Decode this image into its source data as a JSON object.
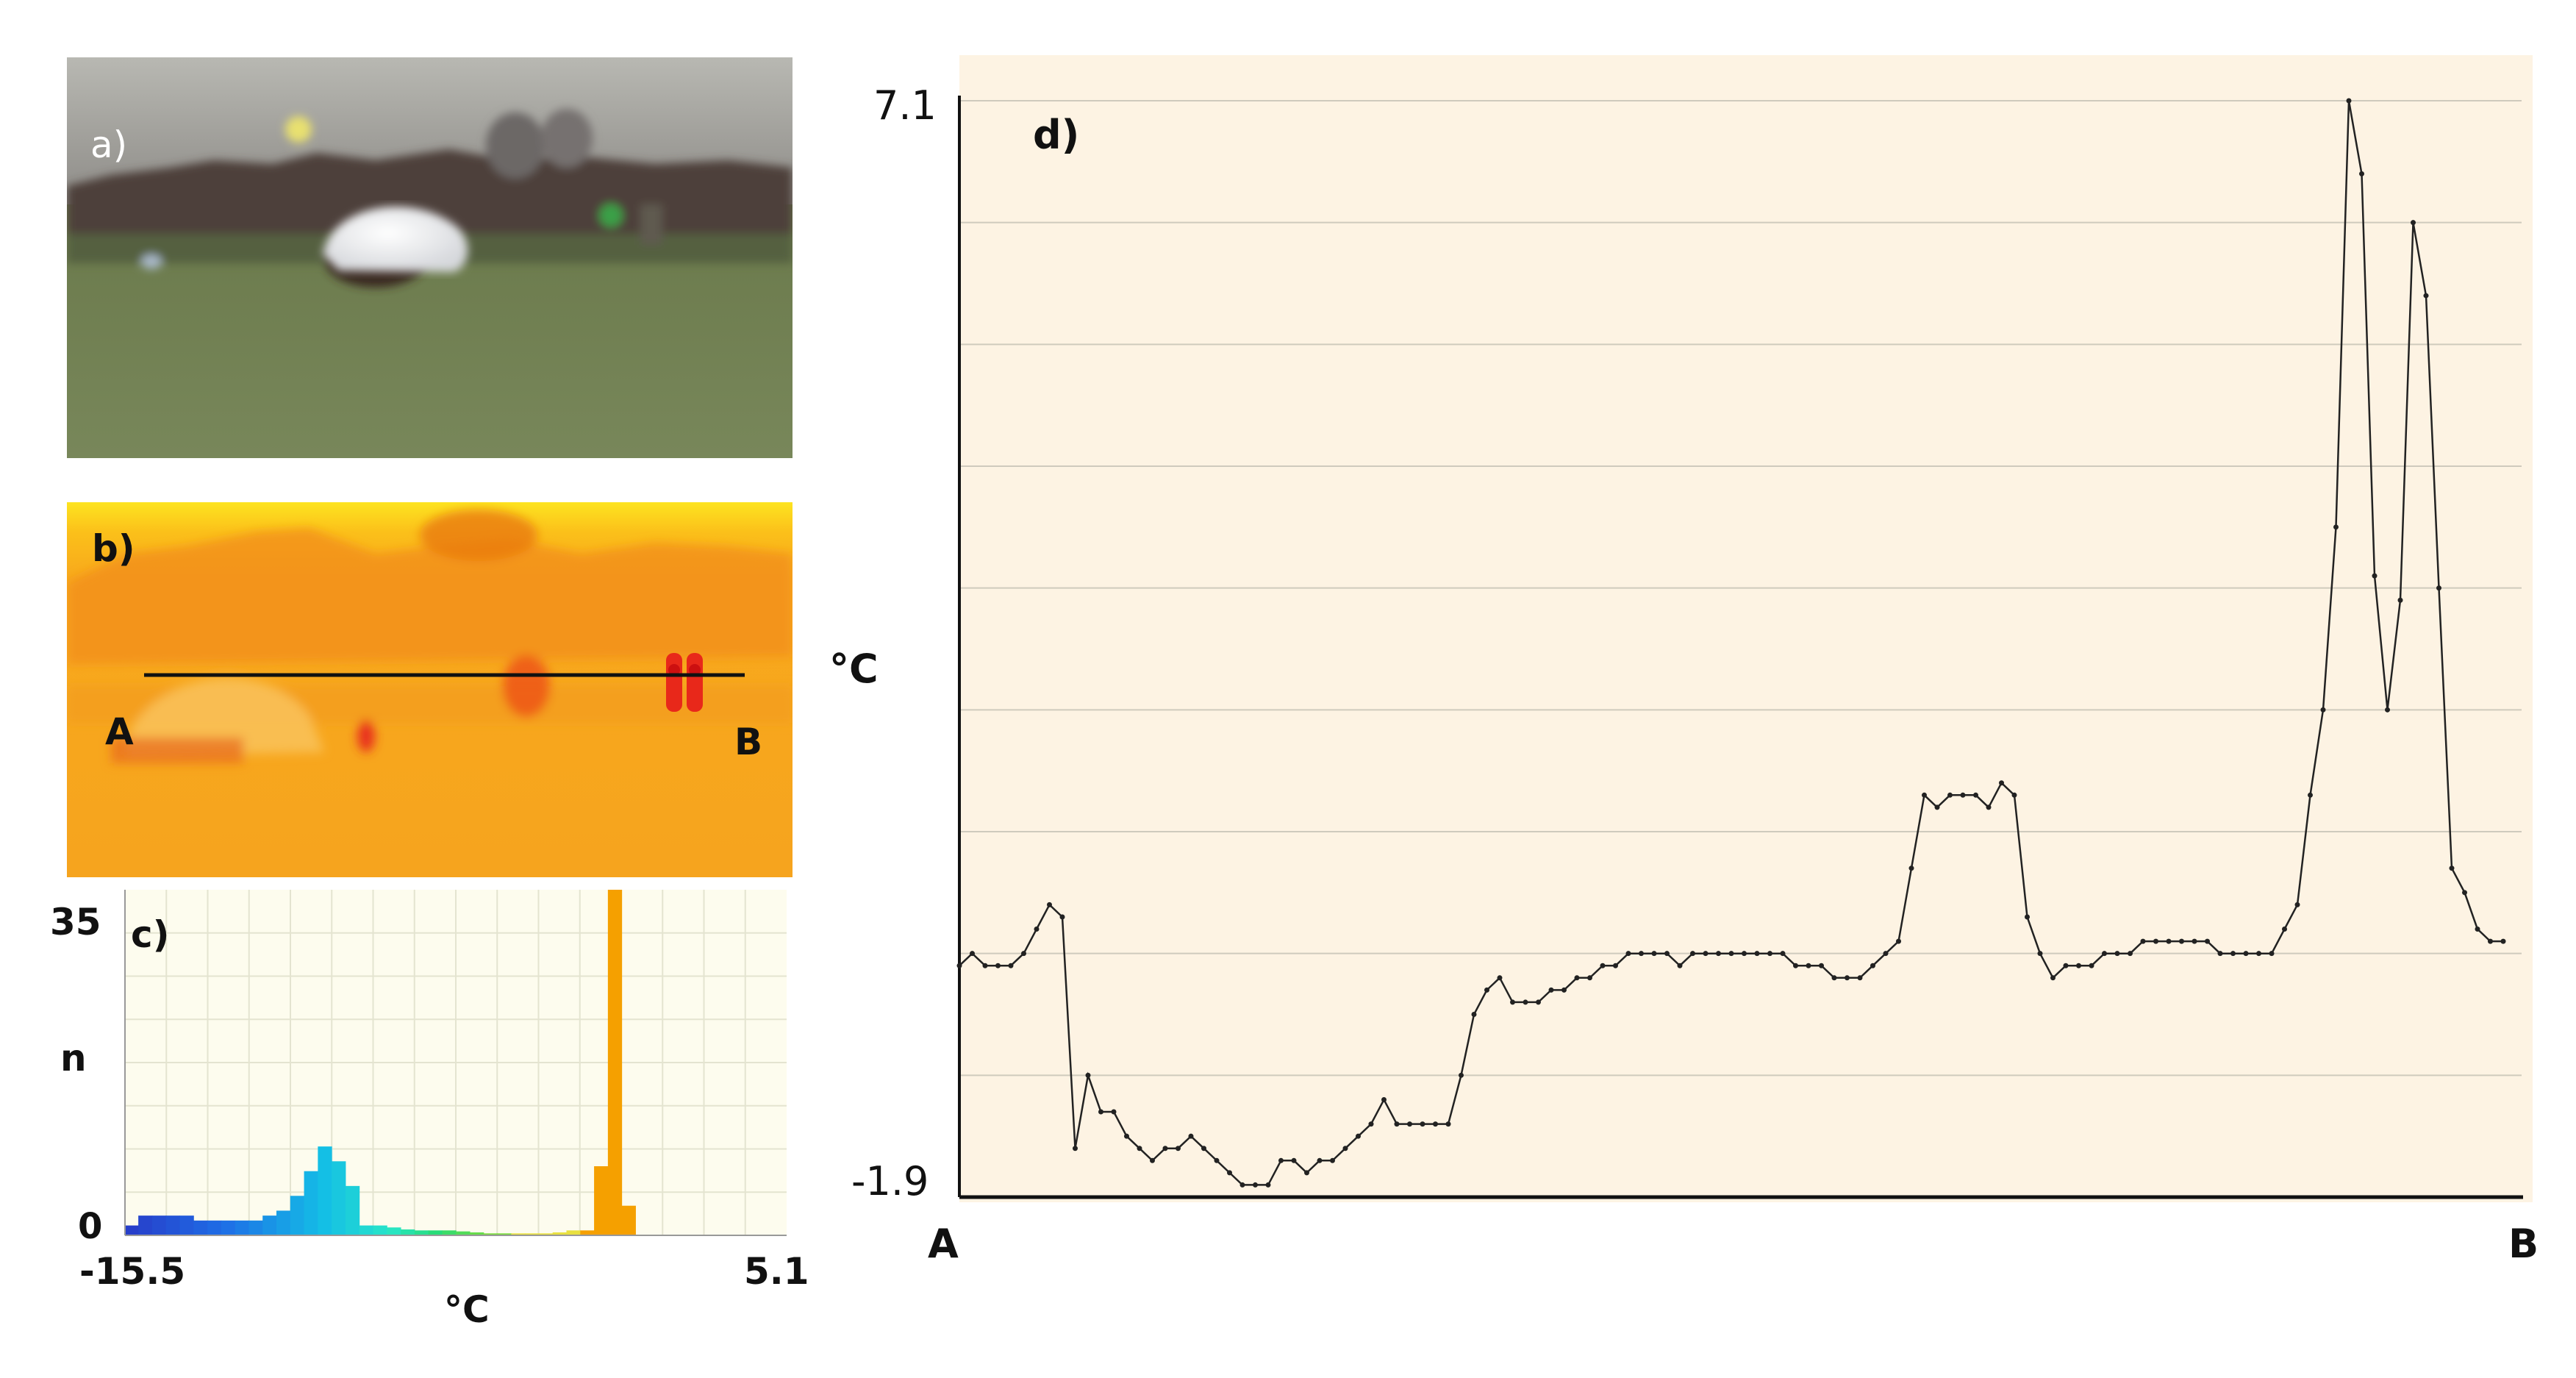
{
  "panels": {
    "a": {
      "label": "a)"
    },
    "b": {
      "label": "b)",
      "point_a": "A",
      "point_b": "B"
    },
    "c": {
      "label": "c)"
    },
    "d": {
      "label": "d)"
    }
  },
  "colors": {
    "profile_bg": "#fdf3e3",
    "histogram_bg": "#fdfcee",
    "thermal_base": "#f7a21c",
    "profile_line": "#222222",
    "histogram_peak": "#f5a000"
  },
  "chart_data": [
    {
      "type": "bar",
      "panel": "c",
      "xlabel": "°C",
      "ylabel": "n",
      "x_tick_labels": [
        "-15.5",
        "5.1"
      ],
      "y_tick_labels": [
        "0",
        "35"
      ],
      "xlim": [
        -15.5,
        5.1
      ],
      "ylim": [
        0,
        35
      ],
      "grid": true,
      "bin_width": 0.43,
      "x": [
        -15.3,
        -14.87,
        -14.44,
        -14.01,
        -13.58,
        -13.15,
        -12.72,
        -12.29,
        -11.86,
        -11.43,
        -11.0,
        -10.57,
        -10.14,
        -9.71,
        -9.28,
        -8.85,
        -8.42,
        -7.99,
        -7.56,
        -7.13,
        -6.7,
        -6.27,
        -5.84,
        -5.41,
        -4.98,
        -4.55,
        -4.12,
        -3.69,
        -3.26,
        -2.83,
        -2.4,
        -1.97,
        -1.54,
        -1.11,
        -0.68,
        -0.25,
        0.18,
        0.61,
        1.04
      ],
      "values": [
        1,
        2,
        2,
        2,
        2,
        1.5,
        1.5,
        1.5,
        1.5,
        1.5,
        2,
        2.5,
        4,
        6.5,
        9,
        7.5,
        5,
        1,
        1,
        0.8,
        0.6,
        0.5,
        0.5,
        0.5,
        0.4,
        0.3,
        0.2,
        0.2,
        0.2,
        0.2,
        0.2,
        0.3,
        0.5,
        0.5,
        7,
        35,
        3,
        0,
        0
      ]
    },
    {
      "type": "line",
      "panel": "d",
      "ylabel": "°C",
      "x_tick_labels": [
        "A",
        "B"
      ],
      "y_tick_labels": [
        "7.1",
        "-1.9"
      ],
      "ylim": [
        -1.9,
        7.1
      ],
      "grid": true,
      "y": [
        0.0,
        0.1,
        0.0,
        0.0,
        0.0,
        0.1,
        0.3,
        0.5,
        0.4,
        -1.5,
        -0.9,
        -1.2,
        -1.2,
        -1.4,
        -1.5,
        -1.6,
        -1.5,
        -1.5,
        -1.4,
        -1.5,
        -1.6,
        -1.7,
        -1.8,
        -1.8,
        -1.8,
        -1.6,
        -1.6,
        -1.7,
        -1.6,
        -1.6,
        -1.5,
        -1.4,
        -1.3,
        -1.1,
        -1.3,
        -1.3,
        -1.3,
        -1.3,
        -1.3,
        -0.9,
        -0.4,
        -0.2,
        -0.1,
        -0.3,
        -0.3,
        -0.3,
        -0.2,
        -0.2,
        -0.1,
        -0.1,
        0.0,
        0.0,
        0.1,
        0.1,
        0.1,
        0.1,
        0.0,
        0.1,
        0.1,
        0.1,
        0.1,
        0.1,
        0.1,
        0.1,
        0.1,
        0.0,
        0.0,
        0.0,
        -0.1,
        -0.1,
        -0.1,
        0.0,
        0.1,
        0.2,
        0.8,
        1.4,
        1.3,
        1.4,
        1.4,
        1.4,
        1.3,
        1.5,
        1.4,
        0.4,
        0.1,
        -0.1,
        0.0,
        0.0,
        0.0,
        0.1,
        0.1,
        0.1,
        0.2,
        0.2,
        0.2,
        0.2,
        0.2,
        0.2,
        0.1,
        0.1,
        0.1,
        0.1,
        0.1,
        0.3,
        0.5,
        1.4,
        2.1,
        3.6,
        7.1,
        6.5,
        3.2,
        2.1,
        3.0,
        6.1,
        5.5,
        3.1,
        0.8,
        0.6,
        0.3,
        0.2,
        0.2
      ]
    }
  ]
}
